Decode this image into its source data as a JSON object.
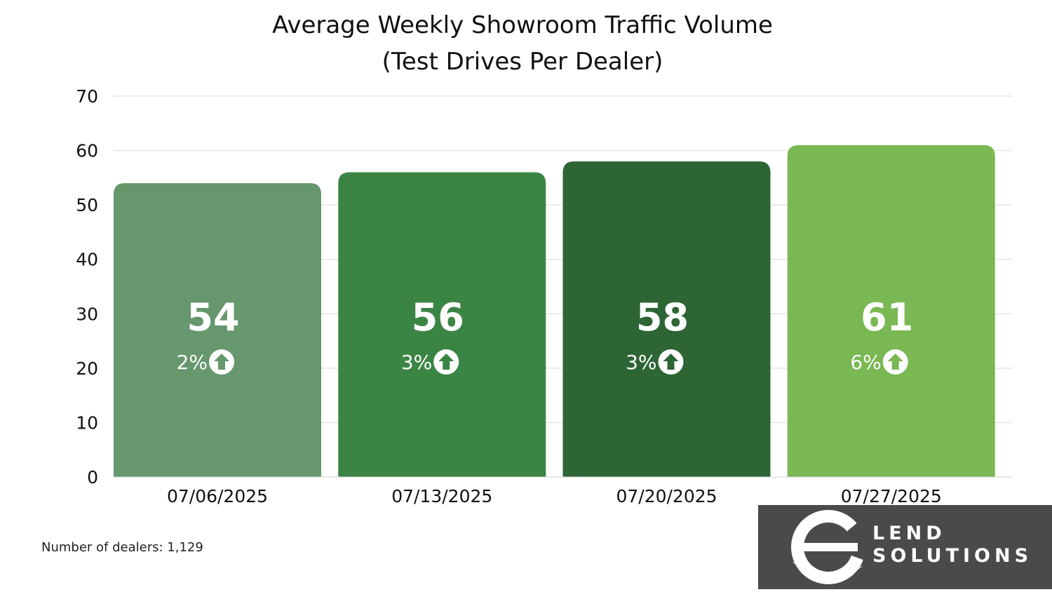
{
  "chart_data": {
    "type": "bar",
    "title": "Average Weekly Showroom Traffic Volume",
    "subtitle": "(Test Drives Per Dealer)",
    "xlabel": "",
    "ylabel": "",
    "categories": [
      "07/06/2025",
      "07/13/2025",
      "07/20/2025",
      "07/27/2025"
    ],
    "values": [
      54,
      56,
      58,
      61
    ],
    "change_labels": [
      "2%",
      "3%",
      "3%",
      "6%"
    ],
    "change_direction": [
      "up",
      "up",
      "up",
      "up"
    ],
    "bar_colors": [
      "#66976d",
      "#3b8544",
      "#2d6535",
      "#79b852"
    ],
    "ylim": [
      0,
      70
    ],
    "yticks": [
      0,
      10,
      20,
      30,
      40,
      50,
      60,
      70
    ],
    "grid": true,
    "legend": "none"
  },
  "footnote": "Number of dealers: 1,129",
  "logo": {
    "line1": "LEND",
    "line2": "SOLUTIONS",
    "mark": "e"
  }
}
